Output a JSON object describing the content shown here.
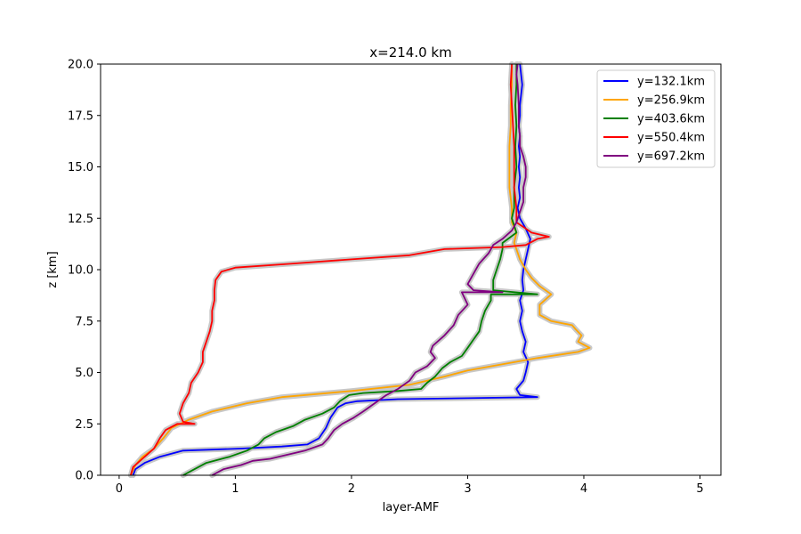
{
  "chart_data": {
    "type": "line",
    "title": "x=214.0 km",
    "xlabel": "layer-AMF",
    "ylabel": "z [km]",
    "xlim": [
      -0.16,
      5.18
    ],
    "ylim": [
      0,
      20
    ],
    "xticks": [
      0,
      1,
      2,
      3,
      4,
      5
    ],
    "xtick_labels": [
      "0",
      "1",
      "2",
      "3",
      "4",
      "5"
    ],
    "yticks": [
      0,
      2.5,
      5,
      7.5,
      10,
      12.5,
      15,
      17.5,
      20
    ],
    "ytick_labels": [
      "0.0",
      "2.5",
      "5.0",
      "7.5",
      "10.0",
      "12.5",
      "15.0",
      "17.5",
      "20.0"
    ],
    "grid": false,
    "legend_position": "top-right",
    "uncertainty_band_color": "#c8c8c8",
    "series": [
      {
        "name": "y=132.1km",
        "color": "#0000ff",
        "points": [
          [
            0.12,
            0
          ],
          [
            0.14,
            0.3
          ],
          [
            0.22,
            0.6
          ],
          [
            0.35,
            0.9
          ],
          [
            0.55,
            1.2
          ],
          [
            1.05,
            1.3
          ],
          [
            1.4,
            1.4
          ],
          [
            1.62,
            1.5
          ],
          [
            1.72,
            1.8
          ],
          [
            1.78,
            2.3
          ],
          [
            1.82,
            2.8
          ],
          [
            1.88,
            3.3
          ],
          [
            1.95,
            3.5
          ],
          [
            2.05,
            3.6
          ],
          [
            2.4,
            3.7
          ],
          [
            3.0,
            3.75
          ],
          [
            3.6,
            3.8
          ],
          [
            3.45,
            3.9
          ],
          [
            3.42,
            4.2
          ],
          [
            3.48,
            4.6
          ],
          [
            3.5,
            5.0
          ],
          [
            3.52,
            5.5
          ],
          [
            3.48,
            6.0
          ],
          [
            3.5,
            6.5
          ],
          [
            3.47,
            7.0
          ],
          [
            3.45,
            7.5
          ],
          [
            3.47,
            8.0
          ],
          [
            3.45,
            8.5
          ],
          [
            3.48,
            9.0
          ],
          [
            3.47,
            9.5
          ],
          [
            3.48,
            10.0
          ],
          [
            3.5,
            10.5
          ],
          [
            3.52,
            11.0
          ],
          [
            3.54,
            11.5
          ],
          [
            3.5,
            12.0
          ],
          [
            3.45,
            12.5
          ],
          [
            3.43,
            13.0
          ],
          [
            3.45,
            13.5
          ],
          [
            3.44,
            14.0
          ],
          [
            3.45,
            14.5
          ],
          [
            3.44,
            15.0
          ],
          [
            3.45,
            15.5
          ],
          [
            3.44,
            16.0
          ],
          [
            3.45,
            16.5
          ],
          [
            3.44,
            17.0
          ],
          [
            3.45,
            17.5
          ],
          [
            3.45,
            18.0
          ],
          [
            3.46,
            18.5
          ],
          [
            3.47,
            19.0
          ],
          [
            3.46,
            19.5
          ],
          [
            3.45,
            20.0
          ]
        ]
      },
      {
        "name": "y=256.9km",
        "color": "#ffa500",
        "points": [
          [
            0.1,
            0
          ],
          [
            0.14,
            0.5
          ],
          [
            0.2,
            0.9
          ],
          [
            0.3,
            1.3
          ],
          [
            0.38,
            1.8
          ],
          [
            0.45,
            2.3
          ],
          [
            0.6,
            2.7
          ],
          [
            0.8,
            3.1
          ],
          [
            1.1,
            3.5
          ],
          [
            1.4,
            3.8
          ],
          [
            2.0,
            4.1
          ],
          [
            2.5,
            4.4
          ],
          [
            2.8,
            4.8
          ],
          [
            3.0,
            5.1
          ],
          [
            3.3,
            5.4
          ],
          [
            3.6,
            5.7
          ],
          [
            3.95,
            6.0
          ],
          [
            4.05,
            6.2
          ],
          [
            3.95,
            6.5
          ],
          [
            3.98,
            6.8
          ],
          [
            3.93,
            7.1
          ],
          [
            3.9,
            7.3
          ],
          [
            3.72,
            7.5
          ],
          [
            3.62,
            7.8
          ],
          [
            3.62,
            8.3
          ],
          [
            3.72,
            8.8
          ],
          [
            3.62,
            9.2
          ],
          [
            3.55,
            9.6
          ],
          [
            3.5,
            10.0
          ],
          [
            3.45,
            10.5
          ],
          [
            3.42,
            11.0
          ],
          [
            3.4,
            11.3
          ],
          [
            3.42,
            11.8
          ],
          [
            3.38,
            12.3
          ],
          [
            3.38,
            13.0
          ],
          [
            3.36,
            14.0
          ],
          [
            3.36,
            15.0
          ],
          [
            3.36,
            16.0
          ],
          [
            3.37,
            17.0
          ],
          [
            3.37,
            18.0
          ],
          [
            3.38,
            19.0
          ],
          [
            3.38,
            20.0
          ]
        ]
      },
      {
        "name": "y=403.6km",
        "color": "#008000",
        "points": [
          [
            0.55,
            0
          ],
          [
            0.65,
            0.3
          ],
          [
            0.75,
            0.6
          ],
          [
            0.95,
            0.9
          ],
          [
            1.1,
            1.2
          ],
          [
            1.2,
            1.5
          ],
          [
            1.25,
            1.8
          ],
          [
            1.35,
            2.1
          ],
          [
            1.5,
            2.4
          ],
          [
            1.6,
            2.7
          ],
          [
            1.75,
            3.0
          ],
          [
            1.85,
            3.3
          ],
          [
            1.9,
            3.6
          ],
          [
            1.98,
            3.9
          ],
          [
            2.1,
            4.0
          ],
          [
            2.4,
            4.1
          ],
          [
            2.6,
            4.2
          ],
          [
            2.65,
            4.5
          ],
          [
            2.72,
            4.8
          ],
          [
            2.78,
            5.2
          ],
          [
            2.85,
            5.5
          ],
          [
            2.95,
            5.8
          ],
          [
            3.0,
            6.2
          ],
          [
            3.05,
            6.6
          ],
          [
            3.1,
            7.0
          ],
          [
            3.12,
            7.5
          ],
          [
            3.15,
            8.0
          ],
          [
            3.2,
            8.5
          ],
          [
            3.2,
            8.8
          ],
          [
            3.6,
            8.8
          ],
          [
            3.22,
            9.0
          ],
          [
            3.22,
            9.5
          ],
          [
            3.25,
            10.0
          ],
          [
            3.28,
            10.5
          ],
          [
            3.3,
            11.0
          ],
          [
            3.3,
            11.3
          ],
          [
            3.42,
            11.8
          ],
          [
            3.38,
            12.5
          ],
          [
            3.4,
            13.0
          ],
          [
            3.4,
            14.0
          ],
          [
            3.42,
            15.0
          ],
          [
            3.41,
            16.0
          ],
          [
            3.42,
            17.0
          ],
          [
            3.41,
            18.0
          ],
          [
            3.42,
            19.0
          ],
          [
            3.42,
            20.0
          ]
        ]
      },
      {
        "name": "y=550.4km",
        "color": "#ff0000",
        "points": [
          [
            0.1,
            0
          ],
          [
            0.12,
            0.4
          ],
          [
            0.2,
            0.8
          ],
          [
            0.3,
            1.3
          ],
          [
            0.35,
            1.8
          ],
          [
            0.4,
            2.2
          ],
          [
            0.5,
            2.5
          ],
          [
            0.65,
            2.5
          ],
          [
            0.55,
            2.6
          ],
          [
            0.52,
            3.0
          ],
          [
            0.55,
            3.5
          ],
          [
            0.6,
            4.0
          ],
          [
            0.62,
            4.5
          ],
          [
            0.68,
            5.0
          ],
          [
            0.72,
            5.5
          ],
          [
            0.72,
            6.0
          ],
          [
            0.75,
            6.5
          ],
          [
            0.78,
            7.0
          ],
          [
            0.8,
            7.5
          ],
          [
            0.8,
            8.0
          ],
          [
            0.82,
            8.5
          ],
          [
            0.82,
            9.0
          ],
          [
            0.83,
            9.5
          ],
          [
            0.88,
            9.9
          ],
          [
            1.0,
            10.1
          ],
          [
            1.5,
            10.3
          ],
          [
            2.0,
            10.5
          ],
          [
            2.5,
            10.7
          ],
          [
            2.8,
            11.0
          ],
          [
            3.3,
            11.1
          ],
          [
            3.5,
            11.2
          ],
          [
            3.6,
            11.5
          ],
          [
            3.7,
            11.6
          ],
          [
            3.55,
            11.8
          ],
          [
            3.5,
            12.0
          ],
          [
            3.42,
            12.3
          ],
          [
            3.42,
            13.0
          ],
          [
            3.4,
            14.0
          ],
          [
            3.4,
            15.0
          ],
          [
            3.4,
            16.0
          ],
          [
            3.39,
            17.0
          ],
          [
            3.38,
            18.0
          ],
          [
            3.37,
            19.0
          ],
          [
            3.38,
            20.0
          ]
        ]
      },
      {
        "name": "y=697.2km",
        "color": "#800080",
        "points": [
          [
            0.8,
            0
          ],
          [
            0.9,
            0.3
          ],
          [
            1.05,
            0.5
          ],
          [
            1.15,
            0.7
          ],
          [
            1.3,
            0.8
          ],
          [
            1.45,
            1.0
          ],
          [
            1.6,
            1.2
          ],
          [
            1.75,
            1.5
          ],
          [
            1.8,
            1.8
          ],
          [
            1.85,
            2.2
          ],
          [
            1.92,
            2.5
          ],
          [
            2.02,
            2.8
          ],
          [
            2.1,
            3.1
          ],
          [
            2.2,
            3.5
          ],
          [
            2.3,
            3.9
          ],
          [
            2.4,
            4.2
          ],
          [
            2.5,
            4.6
          ],
          [
            2.55,
            5.0
          ],
          [
            2.65,
            5.3
          ],
          [
            2.72,
            5.7
          ],
          [
            2.68,
            6.0
          ],
          [
            2.7,
            6.3
          ],
          [
            2.8,
            6.8
          ],
          [
            2.88,
            7.3
          ],
          [
            2.92,
            7.8
          ],
          [
            3.0,
            8.3
          ],
          [
            2.95,
            8.9
          ],
          [
            3.3,
            8.9
          ],
          [
            3.05,
            9.0
          ],
          [
            3.0,
            9.3
          ],
          [
            3.05,
            9.8
          ],
          [
            3.1,
            10.3
          ],
          [
            3.18,
            10.8
          ],
          [
            3.22,
            11.2
          ],
          [
            3.3,
            11.5
          ],
          [
            3.38,
            11.9
          ],
          [
            3.42,
            12.3
          ],
          [
            3.45,
            12.8
          ],
          [
            3.48,
            13.3
          ],
          [
            3.48,
            14.0
          ],
          [
            3.5,
            14.5
          ],
          [
            3.5,
            15.0
          ],
          [
            3.48,
            15.5
          ],
          [
            3.45,
            16.0
          ],
          [
            3.45,
            16.5
          ],
          [
            3.44,
            17.0
          ],
          [
            3.44,
            17.5
          ],
          [
            3.44,
            18.0
          ],
          [
            3.43,
            19.0
          ],
          [
            3.42,
            19.5
          ],
          [
            3.43,
            20.0
          ]
        ]
      }
    ]
  }
}
